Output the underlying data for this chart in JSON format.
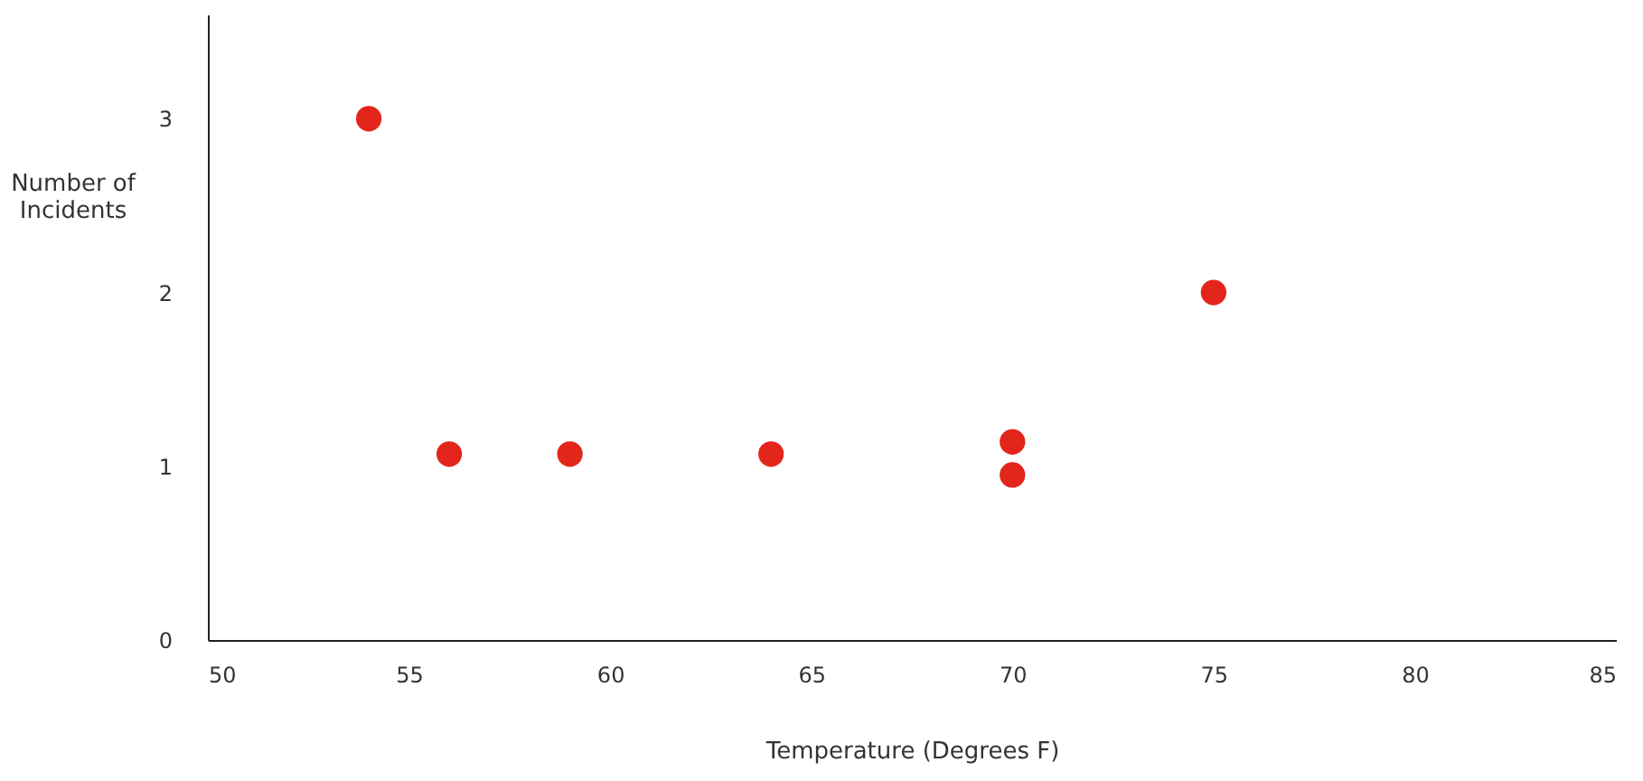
{
  "chart_data": {
    "type": "scatter",
    "xlabel": "Temperature (Degrees F)",
    "ylabel": "Number of\nIncidents",
    "x": [
      54,
      56,
      59,
      64,
      70,
      70,
      75
    ],
    "series": [
      {
        "color": "#e3261b",
        "values": [
          3,
          1.07,
          1.07,
          1.07,
          1.14,
          0.95,
          2
        ]
      }
    ],
    "xlim": [
      50,
      85
    ],
    "xticks": [
      50,
      55,
      60,
      65,
      70,
      75,
      80,
      85
    ],
    "ylim": [
      0,
      3.6
    ],
    "yticks": [
      0,
      1,
      2,
      3
    ],
    "marker": "circle",
    "grid": false
  }
}
